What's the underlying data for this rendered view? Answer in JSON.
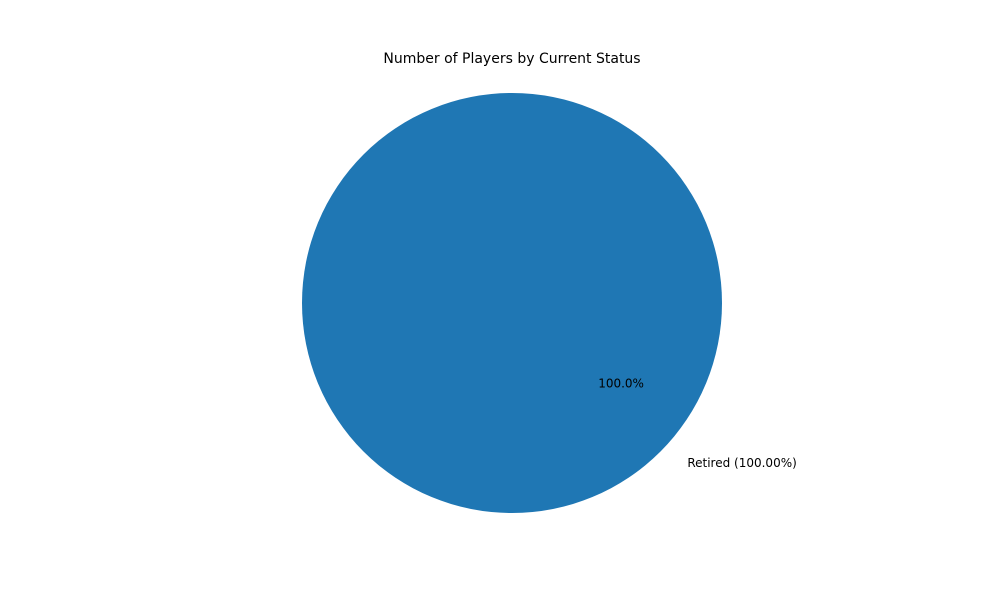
{
  "chart_data": {
    "type": "pie",
    "title": "Number of Players by Current Status",
    "categories": [
      "Retired (100.00%)"
    ],
    "values": [
      100.0
    ],
    "percent_labels": [
      "100.0%"
    ],
    "colors": [
      "#1f77b4"
    ],
    "legend": "none",
    "grid": false
  }
}
